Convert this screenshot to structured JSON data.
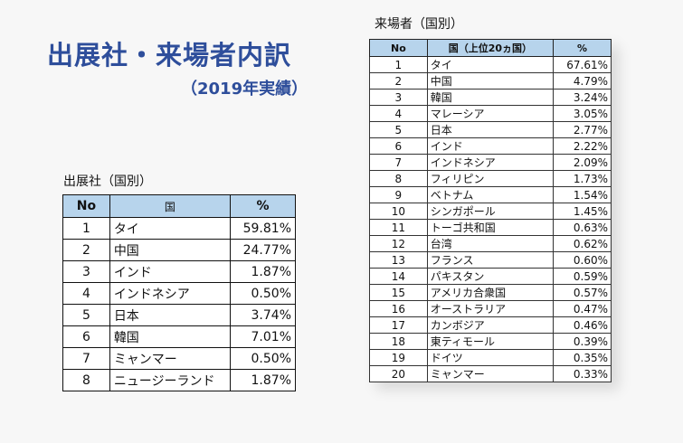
{
  "heading": {
    "title": "出展社・来場者内訳",
    "subtitle": "（2019年実績）"
  },
  "exhibitors": {
    "caption": "出展社（国別）",
    "headers": {
      "no": "No",
      "country": "国",
      "pct": "%"
    },
    "rows": [
      {
        "no": "1",
        "country": "タイ",
        "pct": "59.81%"
      },
      {
        "no": "2",
        "country": "中国",
        "pct": "24.77%"
      },
      {
        "no": "3",
        "country": "インド",
        "pct": "1.87%"
      },
      {
        "no": "4",
        "country": "インドネシア",
        "pct": "0.50%"
      },
      {
        "no": "5",
        "country": "日本",
        "pct": "3.74%"
      },
      {
        "no": "6",
        "country": "韓国",
        "pct": "7.01%"
      },
      {
        "no": "7",
        "country": "ミャンマー",
        "pct": "0.50%"
      },
      {
        "no": "8",
        "country": "ニュージーランド",
        "pct": "1.87%"
      }
    ]
  },
  "visitors": {
    "caption": "来場者（国別）",
    "headers": {
      "no": "No",
      "country": "国（上位20ヵ国）",
      "pct": "%"
    },
    "rows": [
      {
        "no": "1",
        "country": "タイ",
        "pct": "67.61%"
      },
      {
        "no": "2",
        "country": "中国",
        "pct": "4.79%"
      },
      {
        "no": "3",
        "country": "韓国",
        "pct": "3.24%"
      },
      {
        "no": "4",
        "country": "マレーシア",
        "pct": "3.05%"
      },
      {
        "no": "5",
        "country": "日本",
        "pct": "2.77%"
      },
      {
        "no": "6",
        "country": "インド",
        "pct": "2.22%"
      },
      {
        "no": "7",
        "country": "インドネシア",
        "pct": "2.09%"
      },
      {
        "no": "8",
        "country": "フィリピン",
        "pct": "1.73%"
      },
      {
        "no": "9",
        "country": "ベトナム",
        "pct": "1.54%"
      },
      {
        "no": "10",
        "country": "シンガポール",
        "pct": "1.45%"
      },
      {
        "no": "11",
        "country": "トーゴ共和国",
        "pct": "0.63%"
      },
      {
        "no": "12",
        "country": "台湾",
        "pct": "0.62%"
      },
      {
        "no": "13",
        "country": "フランス",
        "pct": "0.60%"
      },
      {
        "no": "14",
        "country": "パキスタン",
        "pct": "0.59%"
      },
      {
        "no": "15",
        "country": "アメリカ合衆国",
        "pct": "0.57%"
      },
      {
        "no": "16",
        "country": "オーストラリア",
        "pct": "0.47%"
      },
      {
        "no": "17",
        "country": "カンボジア",
        "pct": "0.46%"
      },
      {
        "no": "18",
        "country": "東ティモール",
        "pct": "0.39%"
      },
      {
        "no": "19",
        "country": "ドイツ",
        "pct": "0.35%"
      },
      {
        "no": "20",
        "country": "ミャンマー",
        "pct": "0.33%"
      }
    ]
  }
}
